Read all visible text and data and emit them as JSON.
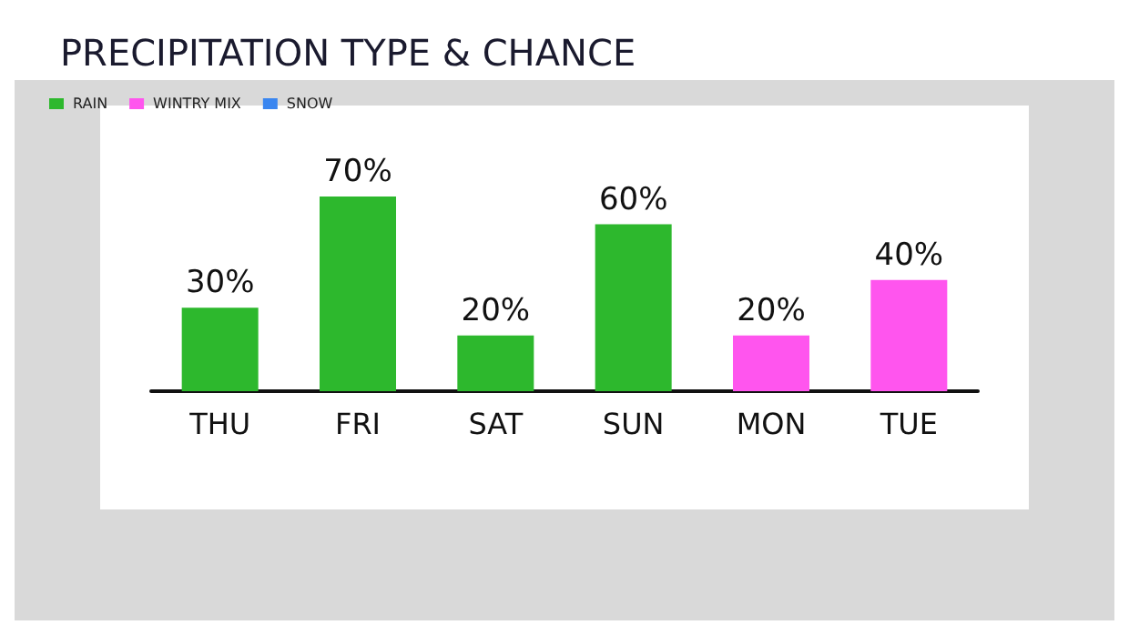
{
  "chart_data": {
    "type": "bar",
    "title": "PRECIPITATION TYPE & CHANCE",
    "categories": [
      "THU",
      "FRI",
      "SAT",
      "SUN",
      "MON",
      "TUE"
    ],
    "stacked": true,
    "legend": "top left",
    "data_labels": true,
    "series": [
      {
        "name": "RAIN",
        "color": "#2db82d",
        "values": [
          30,
          70,
          20,
          60,
          null,
          null
        ],
        "value_labels": [
          "30%",
          "70%",
          "20%",
          "60%",
          null,
          null
        ]
      },
      {
        "name": "WINTRY MIX",
        "color": "#ff55ee",
        "values": [
          null,
          null,
          null,
          null,
          20,
          40
        ],
        "value_labels": [
          null,
          null,
          null,
          null,
          "20%",
          "40%"
        ]
      },
      {
        "name": "SNOW",
        "color": "#3a86f0",
        "values": [
          null,
          null,
          null,
          null,
          null,
          null
        ],
        "value_labels": [
          null,
          null,
          null,
          null,
          null,
          null
        ]
      }
    ]
  }
}
